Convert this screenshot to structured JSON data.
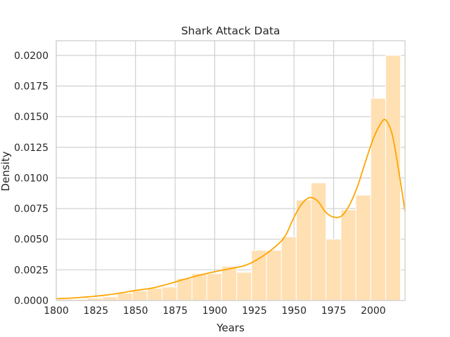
{
  "chart_data": {
    "type": "bar",
    "title": "Shark Attack Data",
    "xlabel": "Years",
    "ylabel": "Density",
    "xlim": [
      1800,
      2020
    ],
    "ylim": [
      0,
      0.0212
    ],
    "x_ticks": [
      1800,
      1825,
      1850,
      1875,
      1900,
      1925,
      1950,
      1975,
      2000
    ],
    "y_ticks": [
      "0.0000",
      "0.0025",
      "0.0050",
      "0.0075",
      "0.0100",
      "0.0125",
      "0.0150",
      "0.0175",
      "0.0200"
    ],
    "grid": true,
    "bar_color": "#ffe0b3",
    "bar_edge_color": "#ffffff",
    "line_color": "#ffa500",
    "histogram": {
      "bin_width": 9.4,
      "bins": [
        {
          "start": 1801.0,
          "value": 0.0001
        },
        {
          "start": 1810.4,
          "value": 0.0001
        },
        {
          "start": 1819.8,
          "value": 0.0002
        },
        {
          "start": 1829.2,
          "value": 0.0003
        },
        {
          "start": 1838.6,
          "value": 0.0006
        },
        {
          "start": 1848.0,
          "value": 0.0008
        },
        {
          "start": 1857.4,
          "value": 0.001
        },
        {
          "start": 1866.8,
          "value": 0.0011
        },
        {
          "start": 1876.2,
          "value": 0.0018
        },
        {
          "start": 1885.6,
          "value": 0.0022
        },
        {
          "start": 1895.0,
          "value": 0.0022
        },
        {
          "start": 1904.4,
          "value": 0.0028
        },
        {
          "start": 1913.8,
          "value": 0.0023
        },
        {
          "start": 1923.2,
          "value": 0.0041
        },
        {
          "start": 1932.6,
          "value": 0.0041
        },
        {
          "start": 1942.0,
          "value": 0.0052
        },
        {
          "start": 1951.4,
          "value": 0.0082
        },
        {
          "start": 1960.8,
          "value": 0.0096
        },
        {
          "start": 1970.2,
          "value": 0.005
        },
        {
          "start": 1979.6,
          "value": 0.0074
        },
        {
          "start": 1989.0,
          "value": 0.0086
        },
        {
          "start": 1998.4,
          "value": 0.0165
        },
        {
          "start": 2007.8,
          "value": 0.02
        }
      ]
    },
    "kde": {
      "x": [
        1800,
        1810,
        1820,
        1830,
        1840,
        1850,
        1860,
        1870,
        1880,
        1890,
        1900,
        1910,
        1920,
        1930,
        1940,
        1945,
        1950,
        1955,
        1960,
        1965,
        1970,
        1975,
        1980,
        1985,
        1990,
        1995,
        2000,
        2005,
        2008,
        2012,
        2016,
        2020
      ],
      "y": [
        0.00015,
        0.0002,
        0.0003,
        0.00042,
        0.0006,
        0.00082,
        0.001,
        0.00132,
        0.0017,
        0.00205,
        0.00235,
        0.0026,
        0.0029,
        0.0036,
        0.0046,
        0.0054,
        0.0068,
        0.0079,
        0.0084,
        0.0081,
        0.0072,
        0.0068,
        0.0069,
        0.0078,
        0.0093,
        0.0113,
        0.0132,
        0.0145,
        0.0147,
        0.0135,
        0.0106,
        0.0073
      ]
    }
  }
}
